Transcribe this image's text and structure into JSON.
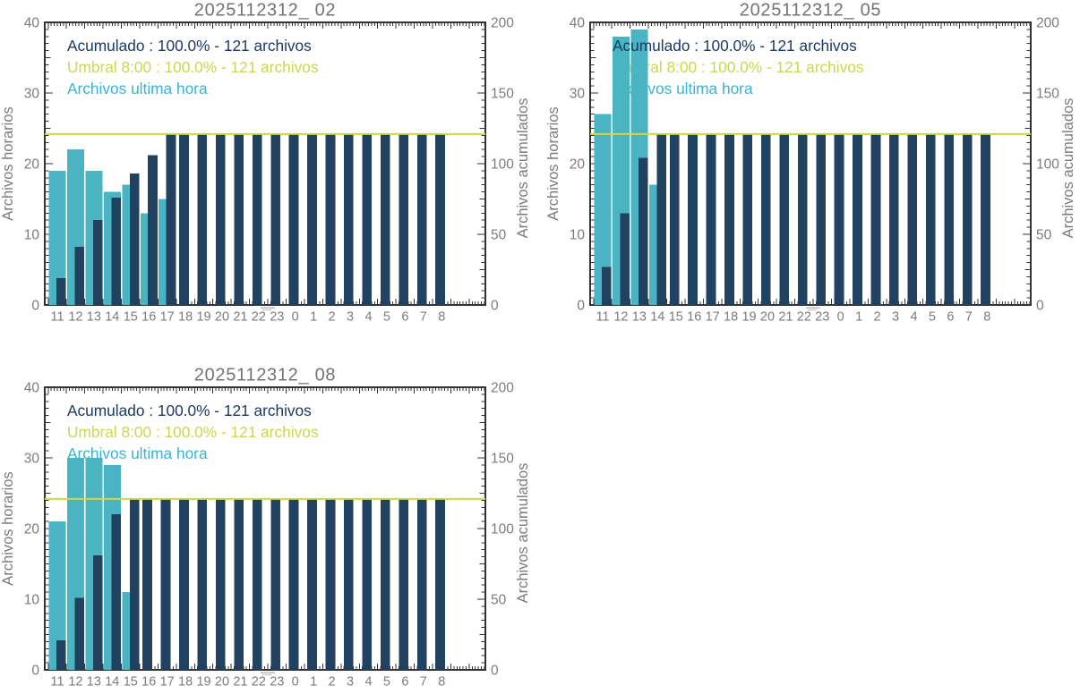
{
  "colors": {
    "bar_navy": "#20415f",
    "bar_teal": "#4ab4c3",
    "text_navy": "#1b3a60",
    "text_teal": "#3bb3d2",
    "umbral_yellow": "#ccd74a",
    "frame": "#333333",
    "gray_text": "#7b7b7b",
    "title_gray": "#737373"
  },
  "chart_data": [
    {
      "type": "bar",
      "title": "2025112312_ 02",
      "ylabel_left": "Archivos horarios",
      "ylabel_right": "Archivos acumulados",
      "ylim_left": [
        0,
        40
      ],
      "ylim_right": [
        0,
        200
      ],
      "left_ticks": [
        0,
        10,
        20,
        30,
        40
      ],
      "right_ticks": [
        0,
        50,
        100,
        150,
        200
      ],
      "categories": [
        "11",
        "12",
        "13",
        "14",
        "15",
        "16",
        "17",
        "18",
        "19",
        "20",
        "21",
        "22",
        "23",
        "0",
        "1",
        "2",
        "3",
        "4",
        "5",
        "6",
        "7",
        "8"
      ],
      "series": [
        {
          "name": "Archivos ultima hora",
          "axis": "left",
          "color": "bar_teal",
          "values": [
            19,
            22,
            19,
            16,
            17,
            13,
            15,
            0,
            0,
            0,
            0,
            0,
            0,
            0,
            0,
            0,
            0,
            0,
            0,
            0,
            0,
            0
          ]
        },
        {
          "name": "Acumulado",
          "axis": "right",
          "color": "bar_navy",
          "values": [
            19,
            41,
            60,
            76,
            93,
            106,
            121,
            121,
            121,
            121,
            121,
            121,
            121,
            121,
            121,
            121,
            121,
            121,
            121,
            121,
            121,
            121
          ]
        }
      ],
      "threshold": {
        "axis": "right",
        "value": 121
      },
      "legend": [
        {
          "text": "Acumulado : 100.0% - 121 archivos",
          "color": "text_navy"
        },
        {
          "text": "Umbral 8:00 : 100.0% - 121 archivos",
          "color": "umbral_yellow"
        },
        {
          "text": "Archivos ultima hora",
          "color": "text_teal"
        }
      ]
    },
    {
      "type": "bar",
      "title": "2025112312_ 05",
      "ylabel_left": "Archivos horarios",
      "ylabel_right": "Archivos acumulados",
      "ylim_left": [
        0,
        40
      ],
      "ylim_right": [
        0,
        200
      ],
      "left_ticks": [
        0,
        10,
        20,
        30,
        40
      ],
      "right_ticks": [
        0,
        50,
        100,
        150,
        200
      ],
      "categories": [
        "11",
        "12",
        "13",
        "14",
        "15",
        "16",
        "17",
        "18",
        "19",
        "20",
        "21",
        "22",
        "23",
        "0",
        "1",
        "2",
        "3",
        "4",
        "5",
        "6",
        "7",
        "8"
      ],
      "series": [
        {
          "name": "Archivos ultima hora",
          "axis": "left",
          "color": "bar_teal",
          "values": [
            27,
            38,
            39,
            17,
            0,
            0,
            0,
            0,
            0,
            0,
            0,
            0,
            0,
            0,
            0,
            0,
            0,
            0,
            0,
            0,
            0,
            0
          ]
        },
        {
          "name": "Acumulado",
          "axis": "right",
          "color": "bar_navy",
          "values": [
            27,
            65,
            104,
            121,
            121,
            121,
            121,
            121,
            121,
            121,
            121,
            121,
            121,
            121,
            121,
            121,
            121,
            121,
            121,
            121,
            121,
            121
          ]
        }
      ],
      "threshold": {
        "axis": "right",
        "value": 121
      },
      "legend": [
        {
          "text": "Acumulado : 100.0% - 121 archivos",
          "color": "text_navy"
        },
        {
          "text": "Umbral 8:00 : 100.0% - 121 archivos",
          "color": "umbral_yellow"
        },
        {
          "text": "Archivos ultima hora",
          "color": "text_teal"
        }
      ]
    },
    {
      "type": "bar",
      "title": "2025112312_ 08",
      "ylabel_left": "Archivos horarios",
      "ylabel_right": "Archivos acumulados",
      "ylim_left": [
        0,
        40
      ],
      "ylim_right": [
        0,
        200
      ],
      "left_ticks": [
        0,
        10,
        20,
        30,
        40
      ],
      "right_ticks": [
        0,
        50,
        100,
        150,
        200
      ],
      "categories": [
        "11",
        "12",
        "13",
        "14",
        "15",
        "16",
        "17",
        "18",
        "19",
        "20",
        "21",
        "22",
        "23",
        "0",
        "1",
        "2",
        "3",
        "4",
        "5",
        "6",
        "7",
        "8"
      ],
      "series": [
        {
          "name": "Archivos ultima hora",
          "axis": "left",
          "color": "bar_teal",
          "values": [
            21,
            30,
            30,
            29,
            11,
            0,
            0,
            0,
            0,
            0,
            0,
            0,
            0,
            0,
            0,
            0,
            0,
            0,
            0,
            0,
            0,
            0
          ]
        },
        {
          "name": "Acumulado",
          "axis": "right",
          "color": "bar_navy",
          "values": [
            21,
            51,
            81,
            110,
            121,
            121,
            121,
            121,
            121,
            121,
            121,
            121,
            121,
            121,
            121,
            121,
            121,
            121,
            121,
            121,
            121,
            121
          ]
        }
      ],
      "threshold": {
        "axis": "right",
        "value": 121
      },
      "legend": [
        {
          "text": "Acumulado : 100.0% - 121 archivos",
          "color": "text_navy"
        },
        {
          "text": "Umbral 8:00 : 100.0% - 121 archivos",
          "color": "umbral_yellow"
        },
        {
          "text": "Archivos ultima hora",
          "color": "text_teal"
        }
      ]
    }
  ]
}
